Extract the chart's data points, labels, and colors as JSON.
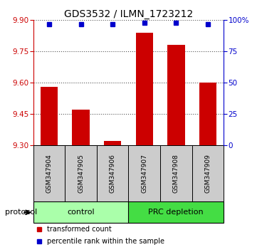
{
  "title": "GDS3532 / ILMN_1723212",
  "samples": [
    "GSM347904",
    "GSM347905",
    "GSM347906",
    "GSM347907",
    "GSM347908",
    "GSM347909"
  ],
  "transformed_counts": [
    9.58,
    9.47,
    9.32,
    9.84,
    9.78,
    9.6
  ],
  "percentile_ranks": [
    97,
    97,
    97,
    98,
    98,
    97
  ],
  "ylim_left": [
    9.3,
    9.9
  ],
  "ylim_right": [
    0,
    100
  ],
  "yticks_left": [
    9.3,
    9.45,
    9.6,
    9.75,
    9.9
  ],
  "yticks_right": [
    0,
    25,
    50,
    75,
    100
  ],
  "ytick_labels_right": [
    "0",
    "25",
    "50",
    "75",
    "100%"
  ],
  "groups": [
    {
      "label": "control",
      "indices": [
        0,
        1,
        2
      ],
      "color": "#aaffaa"
    },
    {
      "label": "PRC depletion",
      "indices": [
        3,
        4,
        5
      ],
      "color": "#44dd44"
    }
  ],
  "bar_color": "#cc0000",
  "dot_color": "#0000cc",
  "bar_bottom": 9.3,
  "bar_width": 0.55,
  "label_box_color": "#cccccc",
  "left_axis_color": "#cc0000",
  "right_axis_color": "#0000cc",
  "title_fontsize": 10,
  "tick_fontsize": 7.5,
  "sample_fontsize": 6.5,
  "group_fontsize": 8,
  "legend_fontsize": 7,
  "protocol_fontsize": 8
}
